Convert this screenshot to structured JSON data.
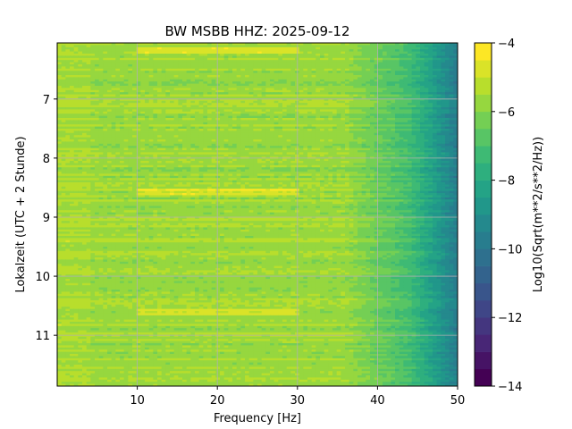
{
  "chart_data": {
    "type": "heatmap",
    "title": "BW MSBB  HHZ: 2025-09-12",
    "xlabel": "Frequency [Hz]",
    "ylabel": "Lokalzeit (UTC + 2 Stunde)",
    "xlim": [
      0,
      50
    ],
    "ylim": [
      11.86,
      6.05
    ],
    "y_inverted": true,
    "xticks": [
      10,
      20,
      30,
      40,
      50
    ],
    "yticks": [
      7,
      8,
      9,
      10,
      11
    ],
    "grid": true,
    "colormap": "viridis",
    "colorbar": {
      "label": "Log10(Sqrt(m**2/s**2/Hz))",
      "range": [
        -14,
        -4
      ],
      "ticks": [
        -14,
        -12,
        -10,
        -8,
        -6,
        -4
      ],
      "levels": 20
    },
    "value_description": {
      "typical_range": [
        -7.5,
        -4.5
      ],
      "low_freq_level": -5.8,
      "high_freq_level": -9.5,
      "bright_bands_hours": [
        6.17,
        8.58,
        10.6
      ],
      "bright_band_freq_range_hz": [
        10,
        30
      ]
    }
  }
}
